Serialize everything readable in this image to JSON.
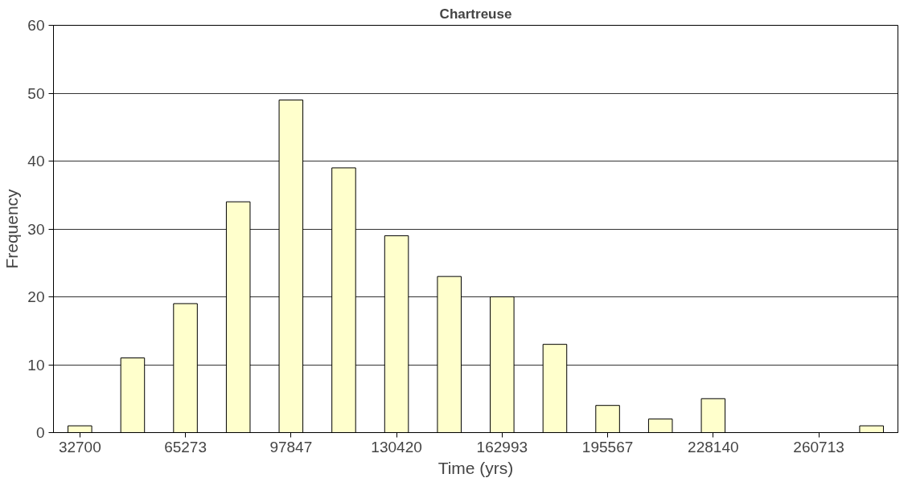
{
  "chart_data": {
    "type": "bar",
    "title": "Chartreuse",
    "xlabel": "Time (yrs)",
    "ylabel": "Frequency",
    "categories": [
      "32700",
      null,
      "65273",
      null,
      "97847",
      null,
      "130420",
      null,
      "162993",
      null,
      "195567",
      null,
      "228140",
      null,
      "260713",
      null
    ],
    "values": [
      1,
      11,
      19,
      34,
      49,
      39,
      29,
      23,
      20,
      13,
      4,
      2,
      5,
      0,
      0,
      1
    ],
    "color": "#ffffcc",
    "ylim": [
      0,
      60
    ],
    "yticks": [
      0,
      10,
      20,
      30,
      40,
      50,
      60
    ],
    "grid": "y"
  }
}
